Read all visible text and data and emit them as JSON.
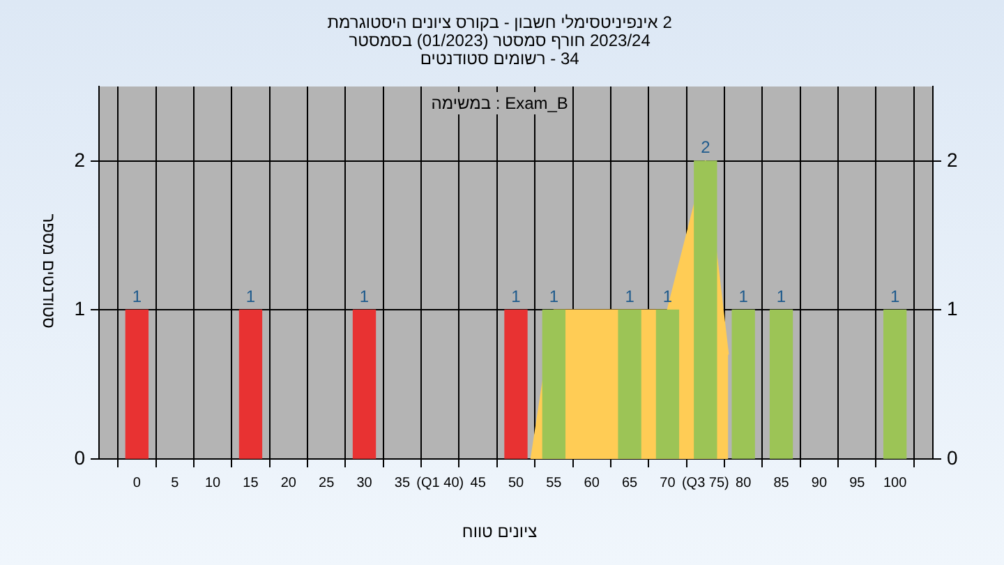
{
  "chart_data": {
    "type": "bar",
    "title": "היסטוגרמת ציונים בקורס - חשבון אינפיניטסימלי 2",
    "subtitle": "בסמסטר (01/2023) סמסטר חורף 2023/24\nסטודנטים רשומים - 34",
    "xlabel": "טווח ציונים",
    "ylabel": "מספר סטודנטים",
    "annotations": [
      "במשימה : Exam_B"
    ],
    "series": [
      {
        "x": [
          0,
          15,
          30,
          50,
          55,
          65,
          70,
          75,
          80,
          85,
          100
        ],
        "values": [
          1,
          1,
          1,
          1,
          1,
          1,
          1,
          2,
          1,
          1,
          1
        ],
        "colors": [
          "#e83232",
          "#e83232",
          "#e83232",
          "#e83232",
          "#9cc456",
          "#9cc456",
          "#9cc456",
          "#9cc456",
          "#9cc456",
          "#9cc456",
          "#9cc456"
        ],
        "value_labels": [
          "1",
          "1",
          "1",
          "1",
          "1",
          "1",
          "1",
          "2",
          "1",
          "1",
          "1"
        ]
      },
      {
        "type": "area",
        "x": [
          52,
          55,
          70,
          75,
          78
        ],
        "values": [
          0,
          1,
          1,
          2,
          0.7
        ],
        "color": "#ffcc55"
      }
    ],
    "xlim": [
      -5,
      105
    ],
    "xticks": [
      0,
      5,
      10,
      15,
      20,
      25,
      30,
      35,
      {
        "value": 40,
        "label": "(Q1 40)"
      },
      45,
      50,
      55,
      60,
      65,
      70,
      {
        "value": 75,
        "label": "(Q3 75)"
      },
      80,
      85,
      90,
      95,
      100
    ],
    "ylim": [
      0,
      2.5
    ],
    "yticks": [
      0,
      1,
      2
    ],
    "y2lim": [
      0,
      2.5
    ],
    "y2ticks": [
      0,
      1,
      2
    ],
    "grid": true
  }
}
